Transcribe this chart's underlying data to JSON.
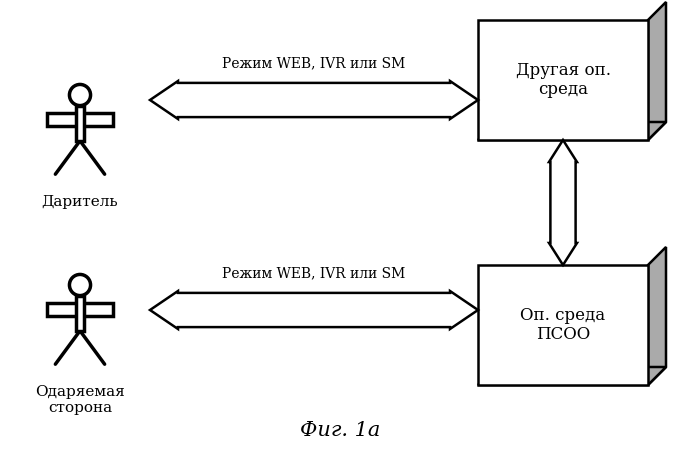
{
  "bg_color": "#ffffff",
  "fig_caption": "Фиг. 1а",
  "top_person_label": "Даритель",
  "bottom_person_label": "Одаряемая\nсторона",
  "top_box_label": "Другая оп.\nсреда",
  "bottom_box_label": "Оп. среда\nПСОО",
  "arrow_label": "Режим WEB, IVR или SM",
  "box_face_color": "#ffffff",
  "box_edge_color": "#000000",
  "box_shadow_color": "#aaaaaa",
  "arrow_face_color": "#ffffff",
  "arrow_edge_color": "#000000",
  "text_color": "#000000",
  "font_size_label": 11,
  "font_size_arrow": 10,
  "font_size_caption": 15,
  "font_size_box": 12
}
